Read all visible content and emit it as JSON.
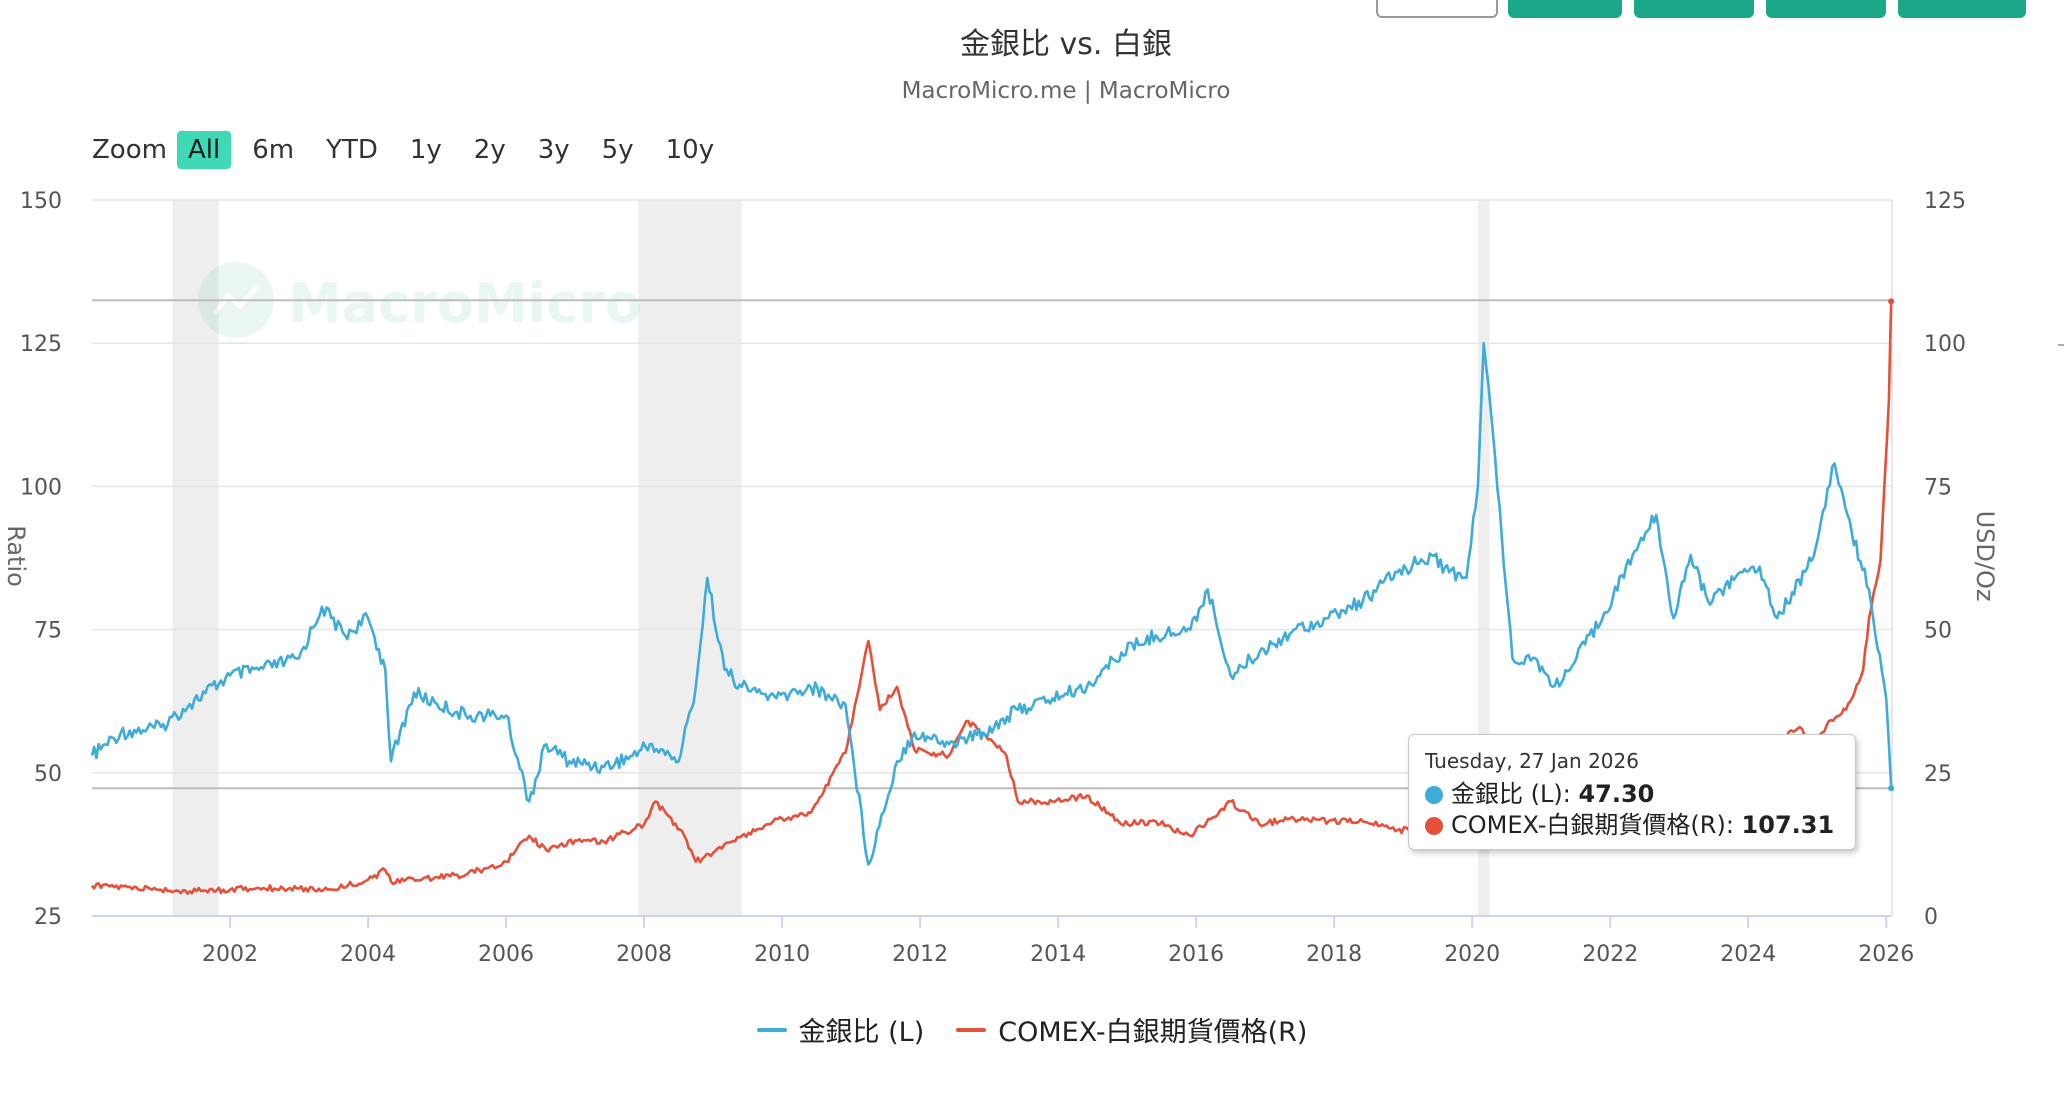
{
  "colors": {
    "ratio": "#3eabd9",
    "silver": "#e5503a",
    "recession": "#eeeeee",
    "grid": "#e6e6e6",
    "accent": "#40d9b6",
    "toolbar_button": "#1aa888"
  },
  "header": {
    "title": "金銀比 vs. 白銀",
    "subtitle": "MacroMicro.me | MacroMicro"
  },
  "watermark": {
    "text": "MacroMicro"
  },
  "zoom": {
    "label": "Zoom",
    "buttons": [
      "All",
      "6m",
      "YTD",
      "1y",
      "2y",
      "3y",
      "5y",
      "10y"
    ],
    "active": "All"
  },
  "tooltip": {
    "date": "Tuesday, 27 Jan 2026",
    "rows": [
      {
        "label": "金銀比 (L): ",
        "value": "47.30"
      },
      {
        "label": "COMEX-白銀期貨價格(R): ",
        "value": "107.31"
      }
    ]
  },
  "legend": [
    "金銀比 (L)",
    "COMEX-白銀期貨價格(R)"
  ],
  "chart_data": {
    "type": "line",
    "title": "金銀比 vs. 白銀",
    "subtitle": "MacroMicro.me | MacroMicro",
    "x_ticks": [
      "2002",
      "2004",
      "2006",
      "2008",
      "2010",
      "2012",
      "2014",
      "2016",
      "2018",
      "2020",
      "2022",
      "2024",
      "2026"
    ],
    "xlim": [
      "2000-01",
      "2026-02"
    ],
    "y_left": {
      "label": "Ratio",
      "ticks": [
        "25",
        "50",
        "75",
        "100",
        "125",
        "150"
      ],
      "lim": [
        25,
        150
      ]
    },
    "y_right": {
      "label": "USD/Oz",
      "ticks": [
        "0",
        "25",
        "50",
        "75",
        "100",
        "125"
      ],
      "lim": [
        0,
        125
      ]
    },
    "recessions": [
      [
        "2001-03",
        "2001-11"
      ],
      [
        "2007-12",
        "2009-06"
      ],
      [
        "2020-02",
        "2020-04"
      ]
    ],
    "plot_lines": {
      "left": [
        132.5,
        47.3
      ]
    },
    "grid": true,
    "legend_position": "bottom",
    "series": [
      {
        "name": "金銀比 (L)",
        "axis": "left",
        "x": [
          "2000-01",
          "2000-06",
          "2001-01",
          "2001-06",
          "2002-01",
          "2002-06",
          "2003-01",
          "2003-05",
          "2003-09",
          "2004-01",
          "2004-04",
          "2004-05",
          "2004-09",
          "2005-01",
          "2005-06",
          "2006-01",
          "2006-05",
          "2006-08",
          "2006-12",
          "2007-06",
          "2007-11",
          "2008-02",
          "2008-07",
          "2008-10",
          "2008-12",
          "2009-03",
          "2009-06",
          "2009-12",
          "2010-06",
          "2010-12",
          "2011-04",
          "2011-09",
          "2011-12",
          "2012-06",
          "2012-12",
          "2013-06",
          "2013-12",
          "2014-06",
          "2014-12",
          "2015-06",
          "2015-12",
          "2016-03",
          "2016-07",
          "2016-12",
          "2017-06",
          "2017-12",
          "2018-06",
          "2018-12",
          "2019-06",
          "2019-09",
          "2019-12",
          "2020-02",
          "2020-03",
          "2020-05",
          "2020-08",
          "2020-12",
          "2021-03",
          "2021-06",
          "2021-12",
          "2022-06",
          "2022-09",
          "2022-12",
          "2023-03",
          "2023-06",
          "2023-12",
          "2024-03",
          "2024-06",
          "2024-12",
          "2025-04",
          "2025-07",
          "2025-10",
          "2026-01",
          "2026-01-27"
        ],
        "y": [
          53,
          57,
          58,
          62,
          67,
          68,
          70,
          79,
          74,
          77,
          68,
          52,
          64,
          62,
          60,
          60,
          45,
          55,
          52,
          51,
          53,
          55,
          52,
          65,
          84,
          68,
          65,
          63,
          65,
          62,
          34,
          52,
          57,
          55,
          57,
          61,
          63,
          65,
          71,
          74,
          75,
          82,
          67,
          71,
          75,
          77,
          80,
          85,
          88,
          85,
          84,
          100,
          125,
          105,
          70,
          70,
          65,
          68,
          78,
          90,
          95,
          77,
          88,
          80,
          85,
          86,
          77,
          87,
          104,
          92,
          82,
          63,
          47.3
        ]
      },
      {
        "name": "COMEX-白銀期貨價格(R)",
        "axis": "right",
        "x": [
          "2000-01",
          "2001-01",
          "2001-06",
          "2002-01",
          "2002-06",
          "2003-01",
          "2003-06",
          "2004-01",
          "2004-04",
          "2004-05",
          "2005-01",
          "2005-06",
          "2006-01",
          "2006-05",
          "2006-08",
          "2007-01",
          "2007-06",
          "2008-01",
          "2008-03",
          "2008-08",
          "2008-10",
          "2009-01",
          "2009-06",
          "2010-01",
          "2010-06",
          "2010-12",
          "2011-04",
          "2011-06",
          "2011-09",
          "2011-12",
          "2012-06",
          "2012-09",
          "2012-12",
          "2013-04",
          "2013-06",
          "2013-12",
          "2014-06",
          "2014-12",
          "2015-06",
          "2015-12",
          "2016-07",
          "2016-12",
          "2017-06",
          "2017-12",
          "2018-06",
          "2018-12",
          "2019-06",
          "2019-09",
          "2020-03",
          "2020-08",
          "2020-12",
          "2021-06",
          "2022-09",
          "2023-04",
          "2023-10",
          "2024-03",
          "2024-05",
          "2024-10",
          "2024-12",
          "2025-03",
          "2025-06",
          "2025-09",
          "2025-10",
          "2025-12",
          "2026-01-15",
          "2026-01-27"
        ],
        "y": [
          5.3,
          4.6,
          4.3,
          4.6,
          4.9,
          4.8,
          4.6,
          6.3,
          8.0,
          6.0,
          6.8,
          7.2,
          9.5,
          14.0,
          11.5,
          13.2,
          13.0,
          16.0,
          20.0,
          14.0,
          9.5,
          11.0,
          14.0,
          17.0,
          18.0,
          28.5,
          48.0,
          36.0,
          40.0,
          29.0,
          28.0,
          34.0,
          32.0,
          28.0,
          20.0,
          20.0,
          21.0,
          16.0,
          16.5,
          14.0,
          20.0,
          16.0,
          17.0,
          16.5,
          16.5,
          15.0,
          15.0,
          18.0,
          12.0,
          27.0,
          25.0,
          28.0,
          19.0,
          25.0,
          22.0,
          25.0,
          30.0,
          33.0,
          29.0,
          34.0,
          36.0,
          43.0,
          52.0,
          62.0,
          90.0,
          107.31
        ]
      }
    ]
  }
}
